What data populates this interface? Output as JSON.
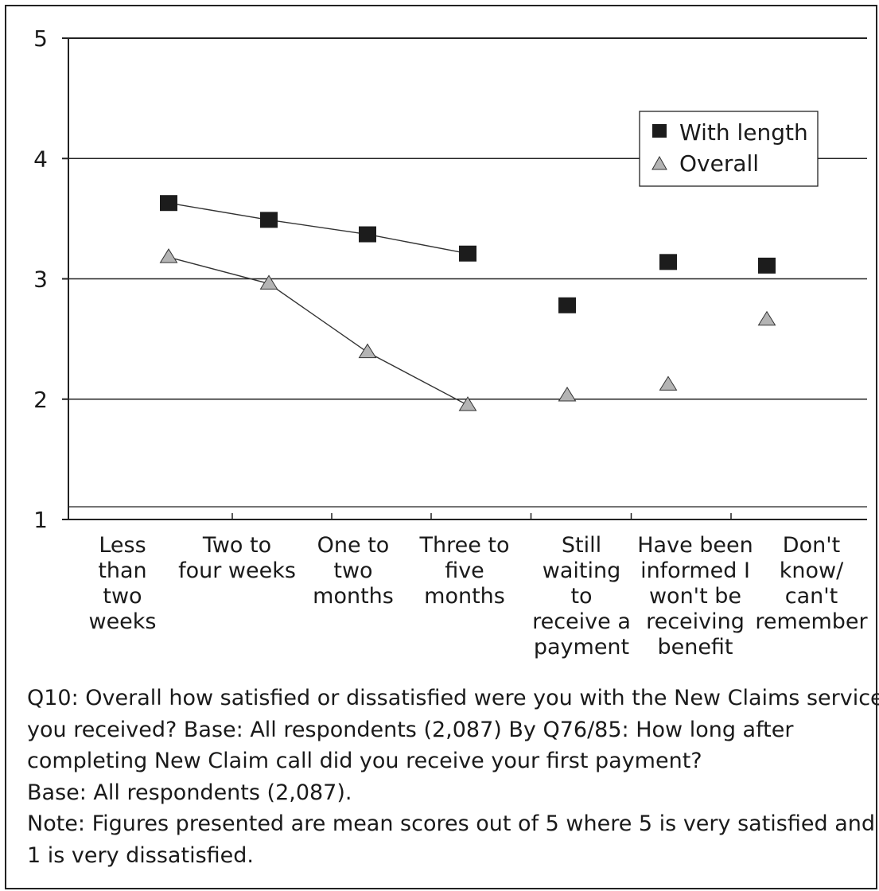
{
  "chart_data": {
    "type": "line",
    "categories": [
      [
        "Less",
        "than",
        "two",
        "weeks"
      ],
      [
        "Two to",
        "four weeks"
      ],
      [
        "One to",
        "two",
        "months"
      ],
      [
        "Three to",
        "five",
        "months"
      ],
      [
        "Still",
        "waiting",
        "to",
        "receive a",
        "payment"
      ],
      [
        "Have been",
        "informed I",
        "won't be",
        "receiving",
        "benefit"
      ],
      [
        "Don't",
        "know/",
        "can't",
        "remember"
      ]
    ],
    "y_ticks": [
      "1",
      "2",
      "3",
      "4",
      "5"
    ],
    "ylim": [
      1,
      5
    ],
    "gridlines": [
      2,
      3,
      4
    ],
    "series": [
      {
        "name": "With length",
        "marker": "square",
        "values": [
          3.63,
          3.49,
          3.37,
          3.21,
          2.78,
          3.14,
          3.11
        ],
        "connected_points": 4
      },
      {
        "name": "Overall",
        "marker": "triangle",
        "values": [
          3.18,
          2.96,
          2.39,
          1.95,
          2.03,
          2.12,
          2.66
        ],
        "connected_points": 4
      }
    ],
    "legend_position": "top-right",
    "colors": {
      "with_length": "#1c1c1c",
      "overall": "#b4b4b4",
      "axis": "#222222"
    }
  },
  "notes": {
    "line1": "Q10: Overall how satisfied or dissatisfied were you with the New Claims service",
    "line2": "you received? Base: All respondents (2,087) By Q76/85: How long after",
    "line3": "completing New Claim call did you receive your first payment?",
    "line4": "Base: All respondents (2,087).",
    "line5": "Note: Figures presented are mean scores out of 5 where 5 is very satisfied and",
    "line6": "1 is very dissatisfied."
  }
}
